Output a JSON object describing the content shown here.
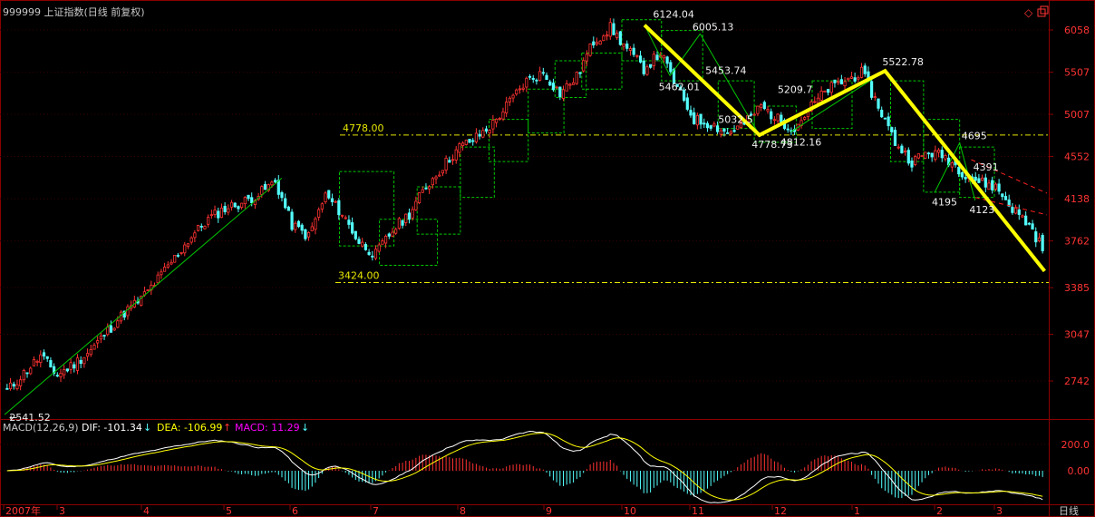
{
  "header": {
    "title": "999999 上证指数(日线 前复权)",
    "diamond_icon": "diamond-icon",
    "restore_icon": "window-restore-icon"
  },
  "macd_header": {
    "name": "MACD(12,26,9)",
    "dif_label": "DIF: -101.34",
    "dif_arrow": "↓",
    "dea_label": "DEA: -106.99",
    "dea_arrow": "↑",
    "macd_label": "MACD: 11.29",
    "macd_arrow": "↓"
  },
  "period_label": "日线",
  "colors": {
    "up": "#ff3232",
    "down": "#54ffff",
    "grid": "#8b0000",
    "axis_text": "#ff3333",
    "trend": "#ffff00",
    "support": "#e6e600",
    "box": "#00c800",
    "dif": "#ffffff",
    "dea": "#ffff00",
    "macd": "#ff00ff",
    "channel": "#ff2020"
  },
  "chart_data": {
    "type": "candlestick",
    "price_axis_ticks": [
      6058,
      5507,
      5007,
      4552,
      4138,
      3762,
      3385,
      3047,
      2742
    ],
    "macd_axis_ticks": [
      "200.0",
      "0.00"
    ],
    "macd_axis_values": [
      200,
      0
    ],
    "date_axis_labels": [
      "2007年",
      "3",
      "4",
      "5",
      "6",
      "7",
      "8",
      "9",
      "10",
      "11",
      "12",
      "1",
      "2",
      "3"
    ],
    "support_lines": [
      {
        "label": "4778.00",
        "value": 4778
      },
      {
        "label": "3424.00",
        "value": 3424
      }
    ],
    "peak_trough_labels": [
      {
        "text": "2541.52",
        "value": 2541.52
      },
      {
        "text": "6124.04",
        "value": 6124.04
      },
      {
        "text": "6005.13",
        "value": 6005.13
      },
      {
        "text": "5462.01",
        "value": 5462.01
      },
      {
        "text": "5453.74",
        "value": 5453.74
      },
      {
        "text": "5032.5",
        "value": 5032.5
      },
      {
        "text": "4778.73",
        "value": 4778.73
      },
      {
        "text": "5209.7",
        "value": 5209.7
      },
      {
        "text": "4812.16",
        "value": 4812.16
      },
      {
        "text": "5522.78",
        "value": 5522.78
      },
      {
        "text": "4695",
        "value": 4695
      },
      {
        "text": "4391",
        "value": 4391
      },
      {
        "text": "4195",
        "value": 4195
      },
      {
        "text": "4123",
        "value": 4123
      }
    ],
    "trend_path": [
      {
        "date": "2007-10-16",
        "value": 6124
      },
      {
        "date": "2007-11-28",
        "value": 4778
      },
      {
        "date": "2008-01-14",
        "value": 5522
      },
      {
        "date": "2008-03-24",
        "value": 3514
      }
    ],
    "closes_weekly": [
      2680,
      2790,
      2900,
      2780,
      2850,
      2940,
      3070,
      3200,
      3300,
      3450,
      3620,
      3800,
      3950,
      4050,
      4100,
      4180,
      4300,
      3900,
      3800,
      4170,
      4000,
      3750,
      3650,
      3850,
      4000,
      4250,
      4450,
      4650,
      4750,
      4900,
      5150,
      5400,
      5500,
      5250,
      5450,
      5900,
      6090,
      5800,
      5550,
      5750,
      5300,
      4950,
      4900,
      4800,
      4900,
      5100,
      4950,
      4850,
      5100,
      5300,
      5400,
      5500,
      5100,
      4700,
      4500,
      4600,
      4550,
      4400,
      4300,
      4250,
      4050,
      3900,
      3650
    ]
  }
}
